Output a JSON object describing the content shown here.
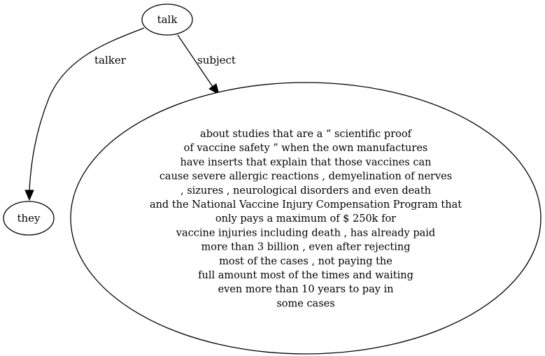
{
  "graph": {
    "nodes": {
      "talk": {
        "label": "talk"
      },
      "they": {
        "label": "they"
      },
      "subject_text": {
        "lines": [
          "about studies that are a “ scientific proof",
          "of vaccine safety ” when the own manufactures",
          "have inserts that explain that those vaccines can",
          "cause severe allergic reactions , demyelination of nerves",
          ", sizures , neurological disorders and even death",
          "and the National Vaccine Injury Compensation Program that",
          "only pays a maximum of $ 250k for",
          "vaccine injuries including death , has already paid",
          "more than 3 billion , even after rejecting",
          "most of the cases , not paying the",
          "full amount most of the times and waiting",
          "even more than 10 years to pay in",
          "some cases"
        ]
      }
    },
    "edges": {
      "talker": {
        "label": "talker"
      },
      "subject": {
        "label": "subject"
      }
    }
  }
}
